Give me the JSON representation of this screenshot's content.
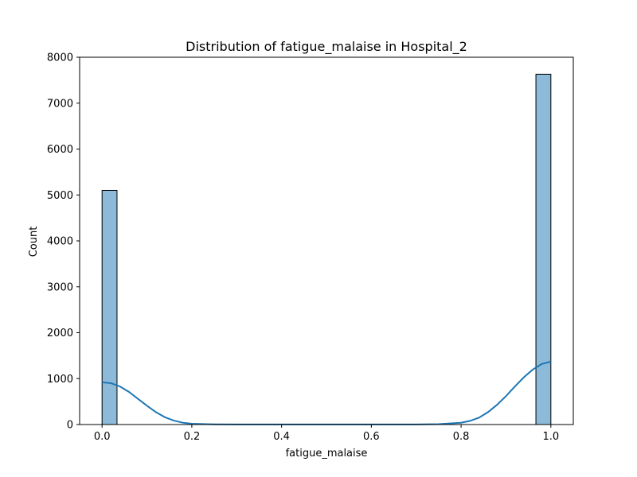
{
  "chart_data": {
    "type": "bar",
    "subtype": "histogram-with-kde",
    "title": "Distribution of fatigue_malaise in Hospital_2",
    "xlabel": "fatigue_malaise",
    "ylabel": "Count",
    "xlim": [
      -0.05,
      1.05
    ],
    "ylim": [
      0,
      8000
    ],
    "xticks": [
      "0.0",
      "0.2",
      "0.4",
      "0.6",
      "0.8",
      "1.0"
    ],
    "xtick_values": [
      0.0,
      0.2,
      0.4,
      0.6,
      0.8,
      1.0
    ],
    "yticks": [
      "0",
      "1000",
      "2000",
      "3000",
      "4000",
      "5000",
      "6000",
      "7000",
      "8000"
    ],
    "ytick_values": [
      0,
      1000,
      2000,
      3000,
      4000,
      5000,
      6000,
      7000,
      8000
    ],
    "grid": false,
    "legend": "none",
    "bins": [
      {
        "x_start": 0.0,
        "x_end": 0.0333,
        "count": 5100
      },
      {
        "x_start": 0.9667,
        "x_end": 1.0,
        "count": 7630
      }
    ],
    "kde": {
      "x": [
        0.0,
        0.02,
        0.04,
        0.06,
        0.08,
        0.1,
        0.12,
        0.14,
        0.16,
        0.18,
        0.2,
        0.25,
        0.3,
        0.4,
        0.5,
        0.6,
        0.7,
        0.75,
        0.8,
        0.82,
        0.84,
        0.86,
        0.88,
        0.9,
        0.92,
        0.94,
        0.96,
        0.98,
        1.0
      ],
      "y": [
        920,
        900,
        830,
        710,
        560,
        410,
        270,
        160,
        85,
        40,
        18,
        5,
        2,
        1,
        1,
        1,
        2,
        8,
        40,
        80,
        150,
        270,
        430,
        620,
        830,
        1030,
        1200,
        1320,
        1370
      ]
    },
    "colors": {
      "bar_fill": "#8ebad9",
      "bar_edge": "#000000",
      "kde_line": "#1f77b4",
      "axes": "#000000"
    }
  }
}
